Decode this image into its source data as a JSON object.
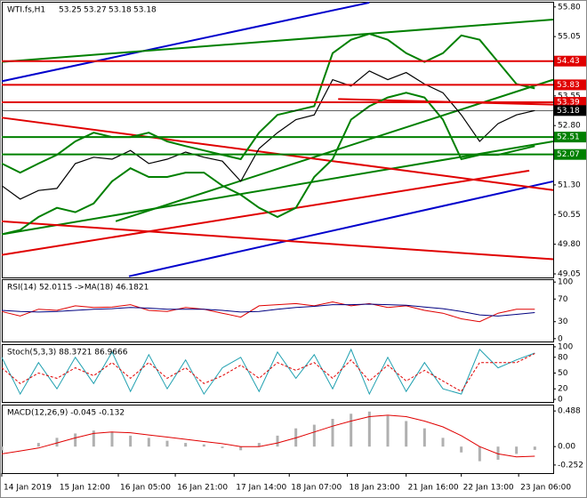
{
  "chart_data": [
    {
      "type": "line",
      "title": "WTI.fs,H1",
      "ohlc": [
        53.25,
        53.27,
        53.18,
        53.18
      ],
      "xlim": [
        0,
        150
      ],
      "ylim": [
        48.96,
        55.93
      ],
      "yticks": [
        {
          "value": 55.8,
          "label": "55.80"
        },
        {
          "value": 55.05,
          "label": "55.05"
        },
        53.55,
        {
          "value": 52.8,
          "label": "52.80"
        },
        {
          "value": 51.3,
          "label": "51.30"
        },
        50.55,
        {
          "value": 49.8,
          "label": "49.80"
        },
        49.05
      ],
      "x": [
        0,
        5,
        10,
        15,
        20,
        25,
        30,
        35,
        40,
        45,
        50,
        55,
        60,
        65,
        70,
        75,
        80,
        85,
        90,
        95,
        100,
        105,
        110,
        115,
        120,
        125,
        130,
        135,
        140,
        145
      ],
      "series": [
        {
          "color": "#008000",
          "width": 2,
          "values": [
            51.84,
            51.61,
            51.84,
            52.06,
            52.4,
            52.62,
            52.51,
            52.51,
            52.62,
            52.4,
            52.28,
            52.17,
            52.06,
            51.95,
            52.62,
            53.07,
            53.18,
            53.29,
            54.63,
            54.97,
            55.12,
            54.97,
            54.63,
            54.41,
            54.63,
            55.08,
            54.97,
            54.41,
            53.85,
            53.74
          ]
        },
        {
          "color": "#008000",
          "width": 2,
          "values": [
            50.05,
            50.16,
            50.49,
            50.72,
            50.61,
            50.83,
            51.39,
            51.72,
            51.5,
            51.5,
            51.61,
            51.61,
            51.28,
            51.05,
            50.72,
            50.49,
            50.72,
            51.5,
            51.95,
            52.95,
            53.29,
            53.51,
            53.63,
            53.51,
            52.95,
            51.95,
            52.06,
            52.06,
            52.17,
            52.28
          ]
        },
        {
          "color": "#000000",
          "width": 1.2,
          "values": [
            51.28,
            50.94,
            51.16,
            51.21,
            51.84,
            52.0,
            51.95,
            52.17,
            51.84,
            51.95,
            52.13,
            52.0,
            51.9,
            51.39,
            52.22,
            52.62,
            52.95,
            53.07,
            53.96,
            53.8,
            54.18,
            53.96,
            54.14,
            53.85,
            53.63,
            53.07,
            52.4,
            52.85,
            53.07,
            53.18
          ]
        }
      ],
      "trendlines": [
        {
          "color": "#0000cc",
          "x": [
            0,
            100
          ],
          "values": [
            53.92,
            55.91
          ]
        },
        {
          "color": "#0000cc",
          "x": [
            34.6,
            150
          ],
          "values": [
            48.99,
            51.39
          ]
        },
        {
          "color": "#008000",
          "x": [
            0,
            150
          ],
          "values": [
            54.41,
            55.48
          ]
        },
        {
          "color": "#008000",
          "x": [
            0,
            150
          ],
          "values": [
            50.05,
            52.4
          ]
        },
        {
          "color": "#008000",
          "x": [
            31,
            150
          ],
          "values": [
            50.38,
            53.96
          ]
        },
        {
          "color": "#e00000",
          "x": [
            0,
            150
          ],
          "values": [
            53.0,
            51.17
          ]
        },
        {
          "color": "#e00000",
          "x": [
            0,
            150
          ],
          "values": [
            50.38,
            49.42
          ]
        },
        {
          "color": "#e00000",
          "x": [
            0,
            143.5
          ],
          "values": [
            49.53,
            51.66
          ]
        },
        {
          "color": "#e00000",
          "x": [
            91.5,
            150
          ],
          "values": [
            53.47,
            53.33
          ]
        }
      ],
      "levels": [
        {
          "value": 54.43,
          "color": "#e00000"
        },
        {
          "value": 53.83,
          "color": "#e00000"
        },
        {
          "value": 53.39,
          "color": "#e00000"
        },
        {
          "value": 53.18,
          "color": "#000000"
        },
        {
          "value": 52.51,
          "color": "#008000"
        },
        {
          "value": 52.07,
          "color": "#008000"
        }
      ]
    },
    {
      "type": "line",
      "title": "RSI(14) 52.0115 ->MA(18) 46.1821",
      "xlim": [
        0,
        150
      ],
      "ylim": [
        -5,
        105
      ],
      "yticks": [
        100,
        70,
        30,
        0
      ],
      "x": [
        0,
        5,
        10,
        15,
        20,
        25,
        30,
        35,
        40,
        45,
        50,
        55,
        60,
        65,
        70,
        75,
        80,
        85,
        90,
        95,
        100,
        105,
        110,
        115,
        120,
        125,
        130,
        135,
        140,
        145
      ],
      "series": [
        {
          "color": "#e00000",
          "width": 1,
          "values": [
            48,
            40,
            52,
            50,
            58,
            55,
            56,
            60,
            50,
            48,
            55,
            52,
            45,
            38,
            58,
            60,
            62,
            58,
            65,
            58,
            62,
            55,
            58,
            50,
            45,
            35,
            30,
            45,
            52,
            52
          ]
        },
        {
          "color": "#000080",
          "width": 1,
          "values": [
            50,
            48,
            47,
            48,
            50,
            52,
            53,
            55,
            54,
            52,
            52,
            52,
            50,
            47,
            48,
            52,
            55,
            57,
            60,
            60,
            61,
            60,
            59,
            56,
            53,
            48,
            42,
            40,
            43,
            46
          ]
        }
      ]
    },
    {
      "type": "line",
      "title": "Stoch(5,3,3) 88.3721 86.9666",
      "xlim": [
        0,
        150
      ],
      "ylim": [
        -5,
        105
      ],
      "yticks": [
        100,
        80,
        50,
        20,
        0
      ],
      "x": [
        0,
        5,
        10,
        15,
        20,
        25,
        30,
        35,
        40,
        45,
        50,
        55,
        60,
        65,
        70,
        75,
        80,
        85,
        90,
        95,
        100,
        105,
        110,
        115,
        120,
        125,
        130,
        135,
        140,
        145
      ],
      "series": [
        {
          "color": "#20a0b0",
          "width": 1,
          "values": [
            80,
            10,
            70,
            20,
            80,
            30,
            90,
            15,
            85,
            20,
            75,
            10,
            60,
            80,
            15,
            90,
            40,
            85,
            20,
            95,
            10,
            80,
            15,
            70,
            20,
            10,
            95,
            60,
            75,
            88
          ]
        },
        {
          "color": "#e00000",
          "width": 1,
          "dash": true,
          "values": [
            60,
            30,
            50,
            40,
            60,
            45,
            70,
            40,
            70,
            40,
            60,
            30,
            45,
            65,
            40,
            70,
            55,
            70,
            40,
            75,
            35,
            65,
            35,
            55,
            35,
            15,
            70,
            70,
            70,
            87
          ]
        }
      ]
    },
    {
      "type": "bar",
      "title": "MACD(12,26,9) -0.045 -0.132",
      "xlim": [
        0,
        150
      ],
      "ylim": [
        -0.363,
        0.575
      ],
      "yticks": [
        0.488,
        {
          "value": 0,
          "label": "0.00"
        },
        -0.252
      ],
      "x": [
        0,
        5,
        10,
        15,
        20,
        25,
        30,
        35,
        40,
        45,
        50,
        55,
        60,
        65,
        70,
        75,
        80,
        85,
        90,
        95,
        100,
        105,
        110,
        115,
        120,
        125,
        130,
        135,
        140,
        145
      ],
      "series": [
        {
          "color": "#b0b0b0",
          "values": [
            -0.05,
            0.0,
            0.05,
            0.12,
            0.18,
            0.22,
            0.2,
            0.15,
            0.12,
            0.08,
            0.05,
            0.03,
            -0.02,
            -0.05,
            0.05,
            0.15,
            0.25,
            0.3,
            0.38,
            0.45,
            0.48,
            0.42,
            0.35,
            0.25,
            0.12,
            -0.08,
            -0.2,
            -0.18,
            -0.1,
            -0.045
          ]
        },
        {
          "type": "line",
          "color": "#e00000",
          "width": 1,
          "values": [
            -0.1,
            -0.06,
            -0.02,
            0.05,
            0.12,
            0.18,
            0.2,
            0.19,
            0.16,
            0.13,
            0.1,
            0.07,
            0.04,
            0.0,
            0.0,
            0.05,
            0.12,
            0.2,
            0.28,
            0.35,
            0.41,
            0.43,
            0.41,
            0.35,
            0.27,
            0.15,
            0.0,
            -0.1,
            -0.14,
            -0.132
          ]
        }
      ],
      "xticks": [
        {
          "value": 0,
          "label": "14 Jan 2019"
        },
        {
          "value": 15.2,
          "label": "15 Jan 12:00"
        },
        {
          "value": 31.7,
          "label": "16 Jan 05:00"
        },
        {
          "value": 47.2,
          "label": "16 Jan 21:00"
        },
        {
          "value": 63.2,
          "label": "17 Jan 14:00"
        },
        {
          "value": 78.2,
          "label": "18 Jan 07:00"
        },
        {
          "value": 94,
          "label": "18 Jan 23:00"
        },
        {
          "value": 110,
          "label": "21 Jan 16:00"
        },
        {
          "value": 125,
          "label": "22 Jan 13:00"
        },
        {
          "value": 140.6,
          "label": "23 Jan 06:00"
        }
      ]
    }
  ]
}
